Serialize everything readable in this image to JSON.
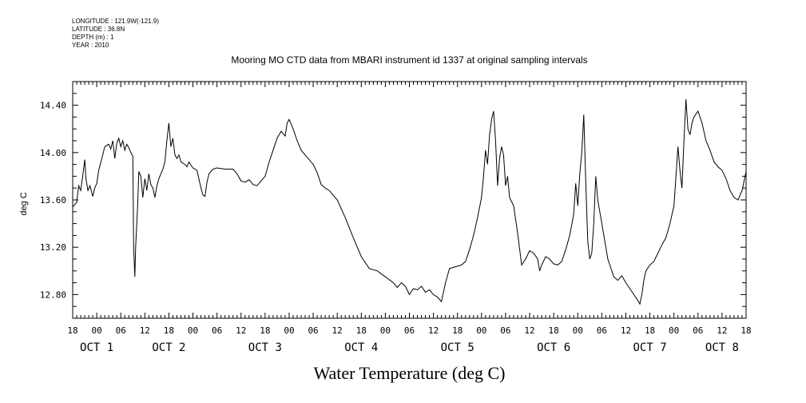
{
  "meta": {
    "longitude": "LONGITUDE : 121.9W(-121.9)",
    "latitude": "LATITUDE : 36.8N",
    "depth": "DEPTH (m) : 1",
    "year": "YEAR : 2010"
  },
  "chart_data": {
    "type": "line",
    "title": "Mooring MO CTD data from MBARI instrument id 1337 at original sampling intervals",
    "xlabel": "Water Temperature (deg C)",
    "ylabel": "deg C",
    "ylim": [
      12.6,
      14.6
    ],
    "xlim_hours": [
      0,
      168
    ],
    "yticks": [
      12.8,
      13.2,
      13.6,
      14.0,
      14.4
    ],
    "ytick_labels": [
      "12.80",
      "13.20",
      "13.60",
      "14.00",
      "14.40"
    ],
    "xtick_labels": [
      "18",
      "00",
      "06",
      "12",
      "18",
      "00",
      "06",
      "12",
      "18",
      "00",
      "06",
      "12",
      "18",
      "00",
      "06",
      "12",
      "18",
      "00",
      "06",
      "12",
      "18",
      "00",
      "06",
      "12",
      "18",
      "00",
      "06",
      "12",
      "18"
    ],
    "day_labels": [
      {
        "text": "OCT  1",
        "hour": 6
      },
      {
        "text": "OCT  2",
        "hour": 24
      },
      {
        "text": "OCT  3",
        "hour": 48
      },
      {
        "text": "OCT  4",
        "hour": 72
      },
      {
        "text": "OCT  5",
        "hour": 96
      },
      {
        "text": "OCT  6",
        "hour": 120
      },
      {
        "text": "OCT  7",
        "hour": 144
      },
      {
        "text": "OCT  8",
        "hour": 162
      }
    ],
    "grid": false,
    "series": [
      {
        "color": "#000000",
        "points": [
          [
            0,
            13.54
          ],
          [
            1,
            13.58
          ],
          [
            1.5,
            13.72
          ],
          [
            2,
            13.68
          ],
          [
            2.5,
            13.8
          ],
          [
            3,
            13.94
          ],
          [
            3.3,
            13.78
          ],
          [
            3.8,
            13.68
          ],
          [
            4.3,
            13.72
          ],
          [
            5,
            13.63
          ],
          [
            5.5,
            13.7
          ],
          [
            6,
            13.74
          ],
          [
            6.5,
            13.85
          ],
          [
            7.5,
            13.98
          ],
          [
            8,
            14.05
          ],
          [
            9,
            14.07
          ],
          [
            9.5,
            14.03
          ],
          [
            10,
            14.1
          ],
          [
            10.5,
            13.95
          ],
          [
            11,
            14.08
          ],
          [
            11.5,
            14.12
          ],
          [
            12,
            14.05
          ],
          [
            12.5,
            14.1
          ],
          [
            13,
            14.02
          ],
          [
            13.5,
            14.07
          ],
          [
            14,
            14.04
          ],
          [
            14.5,
            14.0
          ],
          [
            15,
            13.97
          ],
          [
            15.2,
            13.2
          ],
          [
            15.5,
            12.95
          ],
          [
            15.7,
            13.2
          ],
          [
            16.2,
            13.55
          ],
          [
            16.5,
            13.84
          ],
          [
            17,
            13.8
          ],
          [
            17.5,
            13.62
          ],
          [
            18,
            13.78
          ],
          [
            18.5,
            13.68
          ],
          [
            19,
            13.82
          ],
          [
            19.5,
            13.73
          ],
          [
            20,
            13.7
          ],
          [
            20.5,
            13.62
          ],
          [
            21,
            13.72
          ],
          [
            21.5,
            13.78
          ],
          [
            22,
            13.82
          ],
          [
            22.5,
            13.86
          ],
          [
            23,
            13.92
          ],
          [
            23.5,
            14.1
          ],
          [
            24,
            14.25
          ],
          [
            24.5,
            14.05
          ],
          [
            25,
            14.12
          ],
          [
            25.5,
            13.98
          ],
          [
            26,
            13.95
          ],
          [
            26.5,
            13.98
          ],
          [
            27,
            13.92
          ],
          [
            28,
            13.9
          ],
          [
            28.5,
            13.88
          ],
          [
            29,
            13.92
          ],
          [
            30,
            13.87
          ],
          [
            31,
            13.85
          ],
          [
            32,
            13.7
          ],
          [
            32.5,
            13.64
          ],
          [
            33,
            13.63
          ],
          [
            33.5,
            13.75
          ],
          [
            34,
            13.82
          ],
          [
            35,
            13.86
          ],
          [
            36,
            13.87
          ],
          [
            38,
            13.86
          ],
          [
            40,
            13.86
          ],
          [
            41,
            13.82
          ],
          [
            42,
            13.76
          ],
          [
            43,
            13.75
          ],
          [
            44,
            13.77
          ],
          [
            45,
            13.73
          ],
          [
            46,
            13.72
          ],
          [
            47,
            13.76
          ],
          [
            48,
            13.8
          ],
          [
            49,
            13.92
          ],
          [
            50,
            14.02
          ],
          [
            51,
            14.12
          ],
          [
            52,
            14.18
          ],
          [
            53,
            14.14
          ],
          [
            53.5,
            14.25
          ],
          [
            54,
            14.28
          ],
          [
            54.5,
            14.24
          ],
          [
            55,
            14.2
          ],
          [
            56,
            14.1
          ],
          [
            57,
            14.02
          ],
          [
            58,
            13.98
          ],
          [
            59,
            13.94
          ],
          [
            60,
            13.9
          ],
          [
            61,
            13.83
          ],
          [
            62,
            13.73
          ],
          [
            63,
            13.7
          ],
          [
            64,
            13.68
          ],
          [
            66,
            13.6
          ],
          [
            68,
            13.45
          ],
          [
            70,
            13.28
          ],
          [
            72,
            13.12
          ],
          [
            74,
            13.02
          ],
          [
            76,
            13.0
          ],
          [
            78,
            12.95
          ],
          [
            80,
            12.9
          ],
          [
            81,
            12.86
          ],
          [
            82,
            12.9
          ],
          [
            83,
            12.87
          ],
          [
            84,
            12.8
          ],
          [
            85,
            12.85
          ],
          [
            86,
            12.84
          ],
          [
            87,
            12.87
          ],
          [
            88,
            12.82
          ],
          [
            89,
            12.84
          ],
          [
            90,
            12.8
          ],
          [
            91,
            12.78
          ],
          [
            92,
            12.74
          ],
          [
            93,
            12.9
          ],
          [
            94,
            13.02
          ],
          [
            95,
            13.03
          ],
          [
            96,
            13.04
          ],
          [
            97,
            13.05
          ],
          [
            98,
            13.08
          ],
          [
            99,
            13.18
          ],
          [
            100,
            13.3
          ],
          [
            101,
            13.45
          ],
          [
            102,
            13.62
          ],
          [
            102.5,
            13.8
          ],
          [
            103,
            14.02
          ],
          [
            103.5,
            13.9
          ],
          [
            104,
            14.15
          ],
          [
            104.5,
            14.28
          ],
          [
            105,
            14.35
          ],
          [
            105.5,
            14.1
          ],
          [
            106,
            13.72
          ],
          [
            106.5,
            13.95
          ],
          [
            107,
            14.05
          ],
          [
            107.5,
            13.98
          ],
          [
            108,
            13.72
          ],
          [
            108.5,
            13.8
          ],
          [
            109,
            13.62
          ],
          [
            110,
            13.55
          ],
          [
            111,
            13.32
          ],
          [
            112,
            13.05
          ],
          [
            113,
            13.1
          ],
          [
            114,
            13.17
          ],
          [
            115,
            13.15
          ],
          [
            116,
            13.1
          ],
          [
            116.5,
            13.0
          ],
          [
            117,
            13.05
          ],
          [
            118,
            13.12
          ],
          [
            119,
            13.1
          ],
          [
            120,
            13.06
          ],
          [
            121,
            13.05
          ],
          [
            122,
            13.08
          ],
          [
            123,
            13.18
          ],
          [
            124,
            13.3
          ],
          [
            125,
            13.48
          ],
          [
            125.5,
            13.74
          ],
          [
            126,
            13.55
          ],
          [
            126.5,
            13.82
          ],
          [
            127,
            14.0
          ],
          [
            127.5,
            14.32
          ],
          [
            128,
            13.75
          ],
          [
            128.5,
            13.25
          ],
          [
            129,
            13.1
          ],
          [
            129.5,
            13.15
          ],
          [
            130,
            13.4
          ],
          [
            130.5,
            13.8
          ],
          [
            131,
            13.6
          ],
          [
            132,
            13.4
          ],
          [
            133,
            13.2
          ],
          [
            133.5,
            13.1
          ],
          [
            134,
            13.05
          ],
          [
            135,
            12.95
          ],
          [
            136,
            12.92
          ],
          [
            137,
            12.96
          ],
          [
            138,
            12.9
          ],
          [
            139,
            12.85
          ],
          [
            140,
            12.8
          ],
          [
            141,
            12.75
          ],
          [
            141.5,
            12.72
          ],
          [
            142,
            12.8
          ],
          [
            142.5,
            12.92
          ],
          [
            143,
            13.0
          ],
          [
            144,
            13.05
          ],
          [
            145,
            13.08
          ],
          [
            146,
            13.15
          ],
          [
            147,
            13.22
          ],
          [
            148,
            13.28
          ],
          [
            149,
            13.4
          ],
          [
            150,
            13.55
          ],
          [
            150.5,
            13.8
          ],
          [
            151,
            14.05
          ],
          [
            151.5,
            13.85
          ],
          [
            152,
            13.7
          ],
          [
            152.5,
            14.1
          ],
          [
            153,
            14.45
          ],
          [
            153.5,
            14.2
          ],
          [
            154,
            14.15
          ],
          [
            154.5,
            14.25
          ],
          [
            155,
            14.3
          ],
          [
            156,
            14.35
          ],
          [
            157,
            14.25
          ],
          [
            158,
            14.1
          ],
          [
            159,
            14.02
          ],
          [
            160,
            13.92
          ],
          [
            161,
            13.88
          ],
          [
            162,
            13.85
          ],
          [
            163,
            13.78
          ],
          [
            164,
            13.68
          ],
          [
            165,
            13.62
          ],
          [
            166,
            13.6
          ],
          [
            167,
            13.68
          ],
          [
            168,
            13.84
          ]
        ]
      }
    ]
  }
}
